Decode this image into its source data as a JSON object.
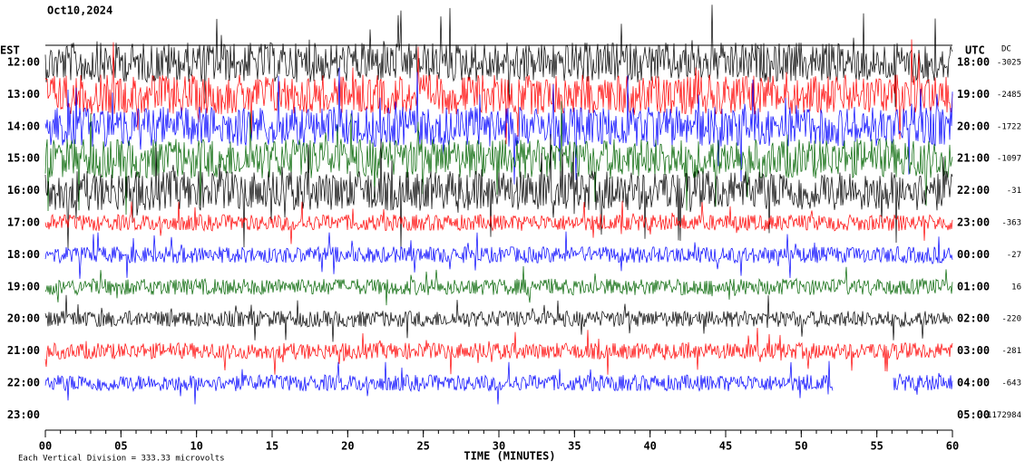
{
  "chart_data": {
    "type": "helicorder",
    "title": "Oct10,2024",
    "left_axis_label": "EST",
    "right_axis_label": "UTC",
    "offset_label": "DC",
    "rows": [
      {
        "est": "12:00",
        "utc": "18:00",
        "dc": -3025,
        "color": "#000000"
      },
      {
        "est": "13:00",
        "utc": "19:00",
        "dc": -2485,
        "color": "#ff0000"
      },
      {
        "est": "14:00",
        "utc": "20:00",
        "dc": -1722,
        "color": "#0000ff"
      },
      {
        "est": "15:00",
        "utc": "21:00",
        "dc": -1097,
        "color": "#006400"
      },
      {
        "est": "16:00",
        "utc": "22:00",
        "dc": -31,
        "color": "#000000"
      },
      {
        "est": "17:00",
        "utc": "23:00",
        "dc": -363,
        "color": "#ff0000"
      },
      {
        "est": "18:00",
        "utc": "00:00",
        "dc": -27,
        "color": "#0000ff"
      },
      {
        "est": "19:00",
        "utc": "01:00",
        "dc": 16,
        "color": "#006400"
      },
      {
        "est": "20:00",
        "utc": "02:00",
        "dc": -220,
        "color": "#000000"
      },
      {
        "est": "21:00",
        "utc": "03:00",
        "dc": -281,
        "color": "#ff0000"
      },
      {
        "est": "22:00",
        "utc": "04:00",
        "dc": -643,
        "color": "#0000ff"
      },
      {
        "est": "23:00",
        "utc": "05:00",
        "dc": -1172984,
        "color": "#006400"
      }
    ],
    "x_label": "TIME (MINUTES)",
    "xlim": [
      0,
      60
    ],
    "xticks": [
      {
        "value": 0,
        "label": "00"
      },
      {
        "value": 5,
        "label": "05"
      },
      10,
      15,
      20,
      25,
      30,
      35,
      40,
      45,
      50,
      55,
      60
    ],
    "footnote": "Each Vertical Division = 333.33 microvolts"
  }
}
